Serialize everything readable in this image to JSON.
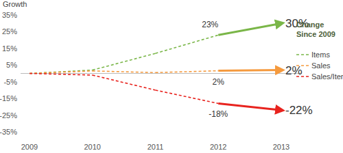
{
  "chart_data": {
    "type": "line",
    "y_label": "Growth",
    "legend_title": "Change Since 2009",
    "categories": [
      "2009",
      "2010",
      "2011",
      "2012",
      "2013"
    ],
    "series": [
      {
        "name": "Items",
        "color": "#7ab648",
        "line_style": "dashed",
        "values": [
          0,
          2,
          12,
          23,
          30
        ],
        "value_labels": [
          null,
          null,
          null,
          "23%",
          "30%"
        ]
      },
      {
        "name": "Sales",
        "color": "#f59a3e",
        "line_style": "dashed",
        "values": [
          0,
          1.5,
          0.5,
          1.6,
          2
        ],
        "value_labels": [
          null,
          null,
          null,
          "2%",
          "2%"
        ]
      },
      {
        "name": "Sales/Item",
        "color": "#e8231e",
        "line_style": "dashed",
        "values": [
          0,
          -1,
          -10,
          -18,
          -22
        ],
        "value_labels": [
          null,
          null,
          null,
          "-18%",
          "-22%"
        ]
      }
    ],
    "ylim": [
      -35,
      35
    ],
    "yticks": [
      {
        "value": 35,
        "label": "35%"
      },
      {
        "value": 25,
        "label": "25%"
      },
      {
        "value": 15,
        "label": "15%"
      },
      {
        "value": 5,
        "label": "5%"
      },
      {
        "value": -5,
        "label": "-5%"
      },
      {
        "value": -15,
        "label": "-15%"
      },
      {
        "value": -25,
        "label": "-25%"
      },
      {
        "value": -35,
        "label": "-35%"
      }
    ],
    "grid": false,
    "legend": "right",
    "data_labels": true
  }
}
